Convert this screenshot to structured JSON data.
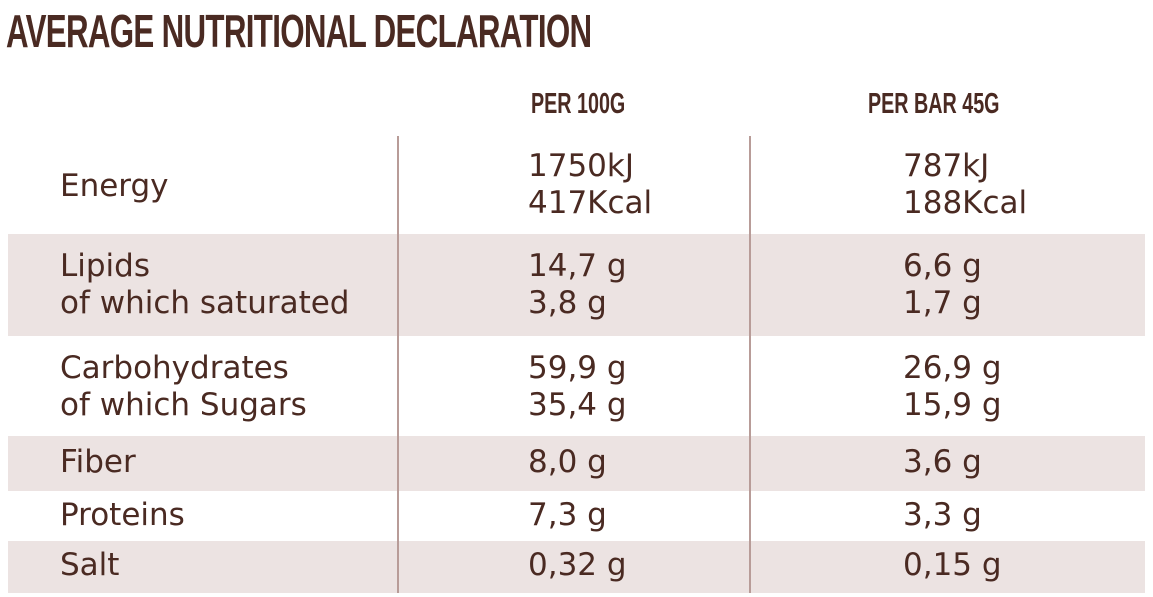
{
  "title": "AVERAGE NUTRITIONAL DECLARATION",
  "columns": {
    "per_100g": "PER 100G",
    "per_bar": "PER BAR 45G"
  },
  "rows": [
    {
      "label": [
        "Energy"
      ],
      "per_100g": [
        "1750kJ",
        "417Kcal"
      ],
      "per_bar": [
        "787kJ",
        "188Kcal"
      ]
    },
    {
      "label": [
        "Lipids",
        "of which saturated"
      ],
      "per_100g": [
        "14,7 g",
        "3,8 g"
      ],
      "per_bar": [
        "6,6 g",
        "1,7 g"
      ]
    },
    {
      "label": [
        "Carbohydrates",
        "of which Sugars"
      ],
      "per_100g": [
        "59,9 g",
        "35,4 g"
      ],
      "per_bar": [
        "26,9 g",
        "15,9 g"
      ]
    },
    {
      "label": [
        "Fiber"
      ],
      "per_100g": [
        "8,0 g"
      ],
      "per_bar": [
        "3,6 g"
      ]
    },
    {
      "label": [
        "Proteins"
      ],
      "per_100g": [
        "7,3 g"
      ],
      "per_bar": [
        "3,3 g"
      ]
    },
    {
      "label": [
        "Salt"
      ],
      "per_100g": [
        "0,32 g"
      ],
      "per_bar": [
        "0,15 g"
      ]
    }
  ],
  "colors": {
    "text": "#4a2a22",
    "row_shade": "#ece3e2",
    "divider": "#b89c98"
  }
}
